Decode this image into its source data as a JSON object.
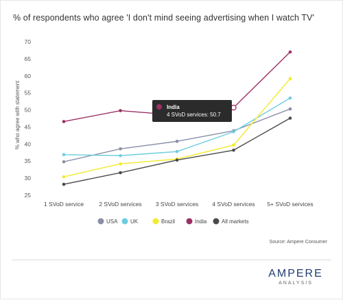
{
  "title": "% of respondents who agree 'I don't mind seeing advertising when I watch TV'",
  "source": "Source: Ampere Consumer",
  "logo": {
    "main": "AMPERE",
    "sub": "ANALYSIS"
  },
  "tooltip": {
    "series": "India",
    "text": "4 SVoD services: 50.7"
  },
  "colors": {
    "USA": "#8a8fa8",
    "UK": "#6ecde0",
    "Brazil": "#f3ea2b",
    "India": "#9b2f63",
    "All markets": "#4a4a4a"
  },
  "chart_data": {
    "type": "line",
    "title": "% of respondents who agree 'I don't mind seeing advertising when I watch TV'",
    "xlabel": "",
    "ylabel": "% who agree with statement",
    "categories": [
      "1 SVoD service",
      "2 SVoD services",
      "3 SVoD services",
      "4 SVoD services",
      "5+ SVoD services"
    ],
    "ylim": [
      25,
      70
    ],
    "yticks": [
      25,
      30,
      35,
      40,
      45,
      50,
      55,
      60,
      65,
      70
    ],
    "grid": false,
    "legend_position": "bottom",
    "series": [
      {
        "name": "USA",
        "values": [
          34.8,
          38.6,
          40.8,
          43.9,
          50.3
        ]
      },
      {
        "name": "UK",
        "values": [
          36.9,
          36.6,
          37.8,
          43.6,
          53.5
        ]
      },
      {
        "name": "Brazil",
        "values": [
          30.4,
          34.2,
          35.6,
          39.7,
          59.2
        ]
      },
      {
        "name": "India",
        "values": [
          46.6,
          49.8,
          48.5,
          50.7,
          67.0
        ]
      },
      {
        "name": "All markets",
        "values": [
          28.2,
          31.6,
          35.3,
          38.2,
          47.6
        ]
      }
    ]
  }
}
